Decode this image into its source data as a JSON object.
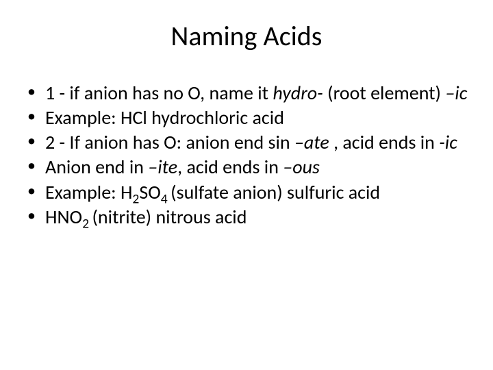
{
  "title": "Naming Acids",
  "bullets": [
    {
      "parts": [
        {
          "text": "1 -  if anion has no O, name it ",
          "style": "normal"
        },
        {
          "text": "hydro- ",
          "style": "italic"
        },
        {
          "text": "(root element) ",
          "style": "normal"
        },
        {
          "text": "–ic",
          "style": "italic"
        }
      ]
    },
    {
      "parts": [
        {
          "text": "Example: HCl hydrochloric acid",
          "style": "normal"
        }
      ]
    },
    {
      "parts": [
        {
          "text": "2 - If anion has O: anion end sin ",
          "style": "normal"
        },
        {
          "text": "–ate ",
          "style": "italic"
        },
        {
          "text": ", acid ends in ",
          "style": "normal"
        },
        {
          "text": "-ic",
          "style": "italic"
        }
      ]
    },
    {
      "parts": [
        {
          "text": "Anion end in ",
          "style": "normal"
        },
        {
          "text": "–ite",
          "style": "italic"
        },
        {
          "text": ", acid ends in ",
          "style": "normal"
        },
        {
          "text": "–ous",
          "style": "italic"
        }
      ]
    },
    {
      "parts": [
        {
          "text": "Example: H",
          "style": "normal"
        },
        {
          "text": "2",
          "style": "sub"
        },
        {
          "text": "SO",
          "style": "normal"
        },
        {
          "text": "4 ",
          "style": "sub"
        },
        {
          "text": " (sulfate anion) sulfuric acid",
          "style": "normal"
        }
      ]
    },
    {
      "parts": [
        {
          "text": "HNO",
          "style": "normal"
        },
        {
          "text": "2 ",
          "style": "sub"
        },
        {
          "text": "(nitrite) nitrous acid",
          "style": "normal"
        }
      ]
    }
  ]
}
